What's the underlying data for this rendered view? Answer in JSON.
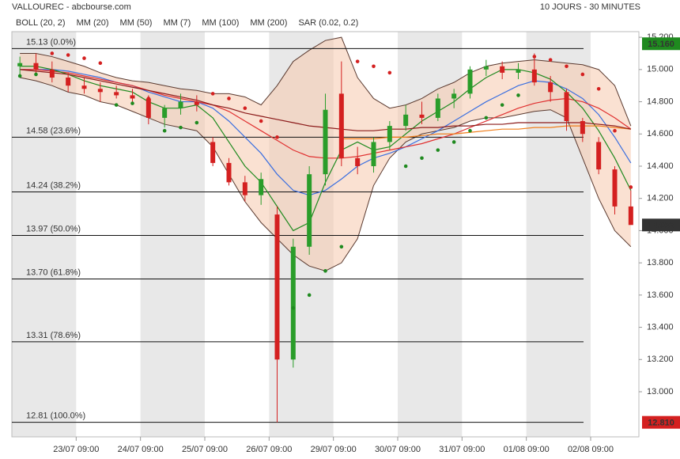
{
  "header": {
    "left": "VALLOUREC - abcbourse.com",
    "right": "10 JOURS - 30 MINUTES"
  },
  "chart_data": {
    "type": "candlestick",
    "up_color": "#2a9d2a",
    "down_color": "#d42020",
    "open": [
      15.02,
      15.04,
      15.0,
      14.95,
      14.9,
      14.88,
      14.86,
      14.84,
      14.82,
      14.7,
      14.76,
      14.8,
      14.55,
      14.42,
      14.3,
      14.22,
      14.1,
      13.2,
      13.9,
      14.35,
      14.85,
      14.45,
      14.4,
      14.55,
      14.65,
      14.72,
      14.7,
      14.82,
      14.85,
      15.0,
      15.02,
      14.98,
      15.0,
      14.92,
      14.86,
      14.68,
      14.55,
      14.38,
      14.15
    ],
    "high": [
      15.08,
      15.1,
      15.05,
      14.98,
      14.95,
      14.92,
      14.9,
      14.88,
      14.84,
      14.78,
      14.85,
      14.84,
      14.58,
      14.45,
      14.34,
      14.36,
      14.15,
      13.95,
      14.4,
      14.85,
      15.05,
      14.52,
      14.58,
      14.68,
      14.78,
      14.8,
      14.85,
      14.88,
      15.02,
      15.06,
      15.05,
      15.04,
      15.1,
      14.96,
      14.88,
      14.7,
      14.58,
      14.4,
      14.25
    ],
    "low": [
      14.96,
      14.98,
      14.92,
      14.86,
      14.85,
      14.8,
      14.82,
      14.78,
      14.66,
      14.64,
      14.72,
      14.74,
      14.4,
      14.28,
      14.18,
      14.16,
      12.81,
      13.15,
      13.85,
      14.28,
      14.4,
      14.35,
      14.36,
      14.5,
      14.62,
      14.66,
      14.68,
      14.76,
      14.82,
      14.96,
      14.94,
      14.94,
      14.9,
      14.8,
      14.62,
      14.55,
      14.35,
      14.1,
      14.05
    ],
    "close": [
      15.04,
      15.0,
      14.95,
      14.9,
      14.88,
      14.86,
      14.84,
      14.82,
      14.7,
      14.76,
      14.8,
      14.78,
      14.42,
      14.3,
      14.22,
      14.32,
      13.2,
      13.9,
      14.35,
      14.75,
      14.45,
      14.4,
      14.55,
      14.65,
      14.72,
      14.7,
      14.82,
      14.85,
      15.0,
      15.02,
      14.98,
      15.0,
      14.92,
      14.86,
      14.68,
      14.6,
      14.38,
      14.15,
      14.035
    ],
    "bollinger": {
      "name": "BOLL (20, 2)",
      "color": "#5a3a30",
      "fill": "#f6c9ad",
      "upper": [
        15.1,
        15.1,
        15.08,
        15.05,
        15.02,
        14.98,
        14.95,
        14.93,
        14.92,
        14.9,
        14.88,
        14.87,
        14.85,
        14.85,
        14.83,
        14.78,
        14.9,
        15.05,
        15.12,
        15.18,
        15.2,
        14.95,
        14.82,
        14.76,
        14.78,
        14.82,
        14.88,
        14.92,
        14.98,
        15.02,
        15.04,
        15.05,
        15.06,
        15.05,
        15.04,
        15.03,
        15.0,
        14.9,
        14.65
      ],
      "lower": [
        14.95,
        14.93,
        14.9,
        14.86,
        14.84,
        14.8,
        14.78,
        14.74,
        14.7,
        14.66,
        14.64,
        14.62,
        14.52,
        14.35,
        14.18,
        14.05,
        13.95,
        13.85,
        13.78,
        13.75,
        13.8,
        13.95,
        14.28,
        14.45,
        14.55,
        14.6,
        14.62,
        14.64,
        14.68,
        14.7,
        14.7,
        14.72,
        14.74,
        14.75,
        14.7,
        14.45,
        14.2,
        14.0,
        13.9
      ]
    },
    "series": [
      {
        "name": "MM (20)",
        "color": "#3b6fe0",
        "values": [
          15.0,
          15.0,
          15.0,
          14.99,
          14.97,
          14.95,
          14.92,
          14.9,
          14.86,
          14.83,
          14.8,
          14.8,
          14.76,
          14.68,
          14.58,
          14.48,
          14.35,
          14.25,
          14.22,
          14.25,
          14.32,
          14.4,
          14.45,
          14.48,
          14.52,
          14.57,
          14.62,
          14.68,
          14.74,
          14.8,
          14.85,
          14.9,
          14.93,
          14.92,
          14.88,
          14.82,
          14.72,
          14.58,
          14.42
        ]
      },
      {
        "name": "MM (50)",
        "color": "#e03030",
        "values": [
          15.0,
          15.0,
          14.99,
          14.98,
          14.96,
          14.94,
          14.92,
          14.9,
          14.87,
          14.84,
          14.82,
          14.8,
          14.78,
          14.74,
          14.68,
          14.62,
          14.56,
          14.5,
          14.46,
          14.45,
          14.45,
          14.46,
          14.48,
          14.5,
          14.52,
          14.54,
          14.57,
          14.6,
          14.64,
          14.68,
          14.72,
          14.76,
          14.79,
          14.81,
          14.82,
          14.8,
          14.76,
          14.7,
          14.63
        ]
      },
      {
        "name": "MM (7)",
        "color": "#1f8a1f",
        "values": [
          15.02,
          15.02,
          15.0,
          14.97,
          14.93,
          14.9,
          14.88,
          14.86,
          14.8,
          14.76,
          14.76,
          14.78,
          14.7,
          14.55,
          14.4,
          14.3,
          14.15,
          14.0,
          14.05,
          14.3,
          14.5,
          14.55,
          14.5,
          14.52,
          14.6,
          14.68,
          14.74,
          14.8,
          14.88,
          14.95,
          15.0,
          15.0,
          14.98,
          14.94,
          14.86,
          14.76,
          14.62,
          14.45,
          14.25
        ]
      },
      {
        "name": "MM (100)",
        "color": "#f07d1a",
        "values": [
          null,
          null,
          null,
          null,
          null,
          null,
          null,
          null,
          null,
          null,
          null,
          null,
          null,
          null,
          null,
          null,
          null,
          null,
          null,
          null,
          14.57,
          14.57,
          14.57,
          14.58,
          14.58,
          14.59,
          14.6,
          14.6,
          14.61,
          14.62,
          14.63,
          14.63,
          14.64,
          14.64,
          14.65,
          14.65,
          14.65,
          14.64,
          14.63
        ]
      },
      {
        "name": "MM (200)",
        "color": "#8b1a1a",
        "values": [
          15.0,
          14.99,
          14.98,
          14.97,
          14.95,
          14.93,
          14.91,
          14.89,
          14.87,
          14.85,
          14.83,
          14.81,
          14.78,
          14.76,
          14.73,
          14.71,
          14.69,
          14.67,
          14.65,
          14.64,
          14.63,
          14.62,
          14.62,
          14.63,
          14.63,
          14.64,
          14.64,
          14.65,
          14.65,
          14.66,
          14.66,
          14.67,
          14.67,
          14.67,
          14.67,
          14.67,
          14.66,
          14.65,
          14.63
        ]
      }
    ],
    "sar": {
      "name": "SAR (0.02, 0.2)",
      "color": "#d42020",
      "color_below": "#1f8a1f",
      "values": [
        14.96,
        14.97,
        15.1,
        15.09,
        15.07,
        15.04,
        14.78,
        14.79,
        14.82,
        14.62,
        14.64,
        14.67,
        14.85,
        14.82,
        14.76,
        14.68,
        14.58,
        13.52,
        13.6,
        13.75,
        13.9,
        15.05,
        15.02,
        14.98,
        14.4,
        14.45,
        14.5,
        14.55,
        14.62,
        14.7,
        14.78,
        14.84,
        15.08,
        15.06,
        15.02,
        14.97,
        14.88,
        14.62,
        14.27
      ]
    },
    "fibonacci": [
      {
        "value": 15.13,
        "label": "15.13  (0.0%)"
      },
      {
        "value": 14.58,
        "label": "14.58  (23.6%)"
      },
      {
        "value": 14.24,
        "label": "14.24  (38.2%)"
      },
      {
        "value": 13.97,
        "label": "13.97  (50.0%)"
      },
      {
        "value": 13.7,
        "label": "13.70  (61.8%)"
      },
      {
        "value": 13.31,
        "label": "13.31  (78.6%)"
      },
      {
        "value": 12.81,
        "label": "12.81  (100.0%)"
      }
    ],
    "price_tags": [
      {
        "value": 15.16,
        "label": "15.160",
        "color": "#1f8a1f"
      },
      {
        "value": 14.035,
        "label": "14.035",
        "color": "#333333"
      },
      {
        "value": 12.81,
        "label": "12.810",
        "color": "#d42020"
      }
    ],
    "ylim": [
      12.72,
      15.235
    ],
    "yticks": [
      {
        "value": 13.0,
        "label": "13.000"
      },
      {
        "value": 13.2,
        "label": "13.200"
      },
      {
        "value": 13.4,
        "label": "13.400"
      },
      {
        "value": 13.6,
        "label": "13.600"
      },
      {
        "value": 13.8,
        "label": "13.800"
      },
      {
        "value": 14.0,
        "label": "14.000"
      },
      {
        "value": 14.2,
        "label": "14.200"
      },
      {
        "value": 14.4,
        "label": "14.400"
      },
      {
        "value": 14.6,
        "label": "14.600"
      },
      {
        "value": 14.8,
        "label": "14.800"
      },
      {
        "value": 15.0,
        "label": "15.000"
      },
      {
        "value": 15.2,
        "label": "15.200"
      }
    ],
    "xticks": [
      {
        "value": 4,
        "label": "23/07 09:00"
      },
      {
        "value": 8,
        "label": "24/07 09:00"
      },
      {
        "value": 12,
        "label": "25/07 09:00"
      },
      {
        "value": 16,
        "label": "26/07 09:00"
      },
      {
        "value": 20,
        "label": "29/07 09:00"
      },
      {
        "value": 24,
        "label": "30/07 09:00"
      },
      {
        "value": 28,
        "label": "31/07 09:00"
      },
      {
        "value": 32,
        "label": "01/08 09:00"
      },
      {
        "value": 36,
        "label": "02/08 09:00"
      }
    ]
  }
}
